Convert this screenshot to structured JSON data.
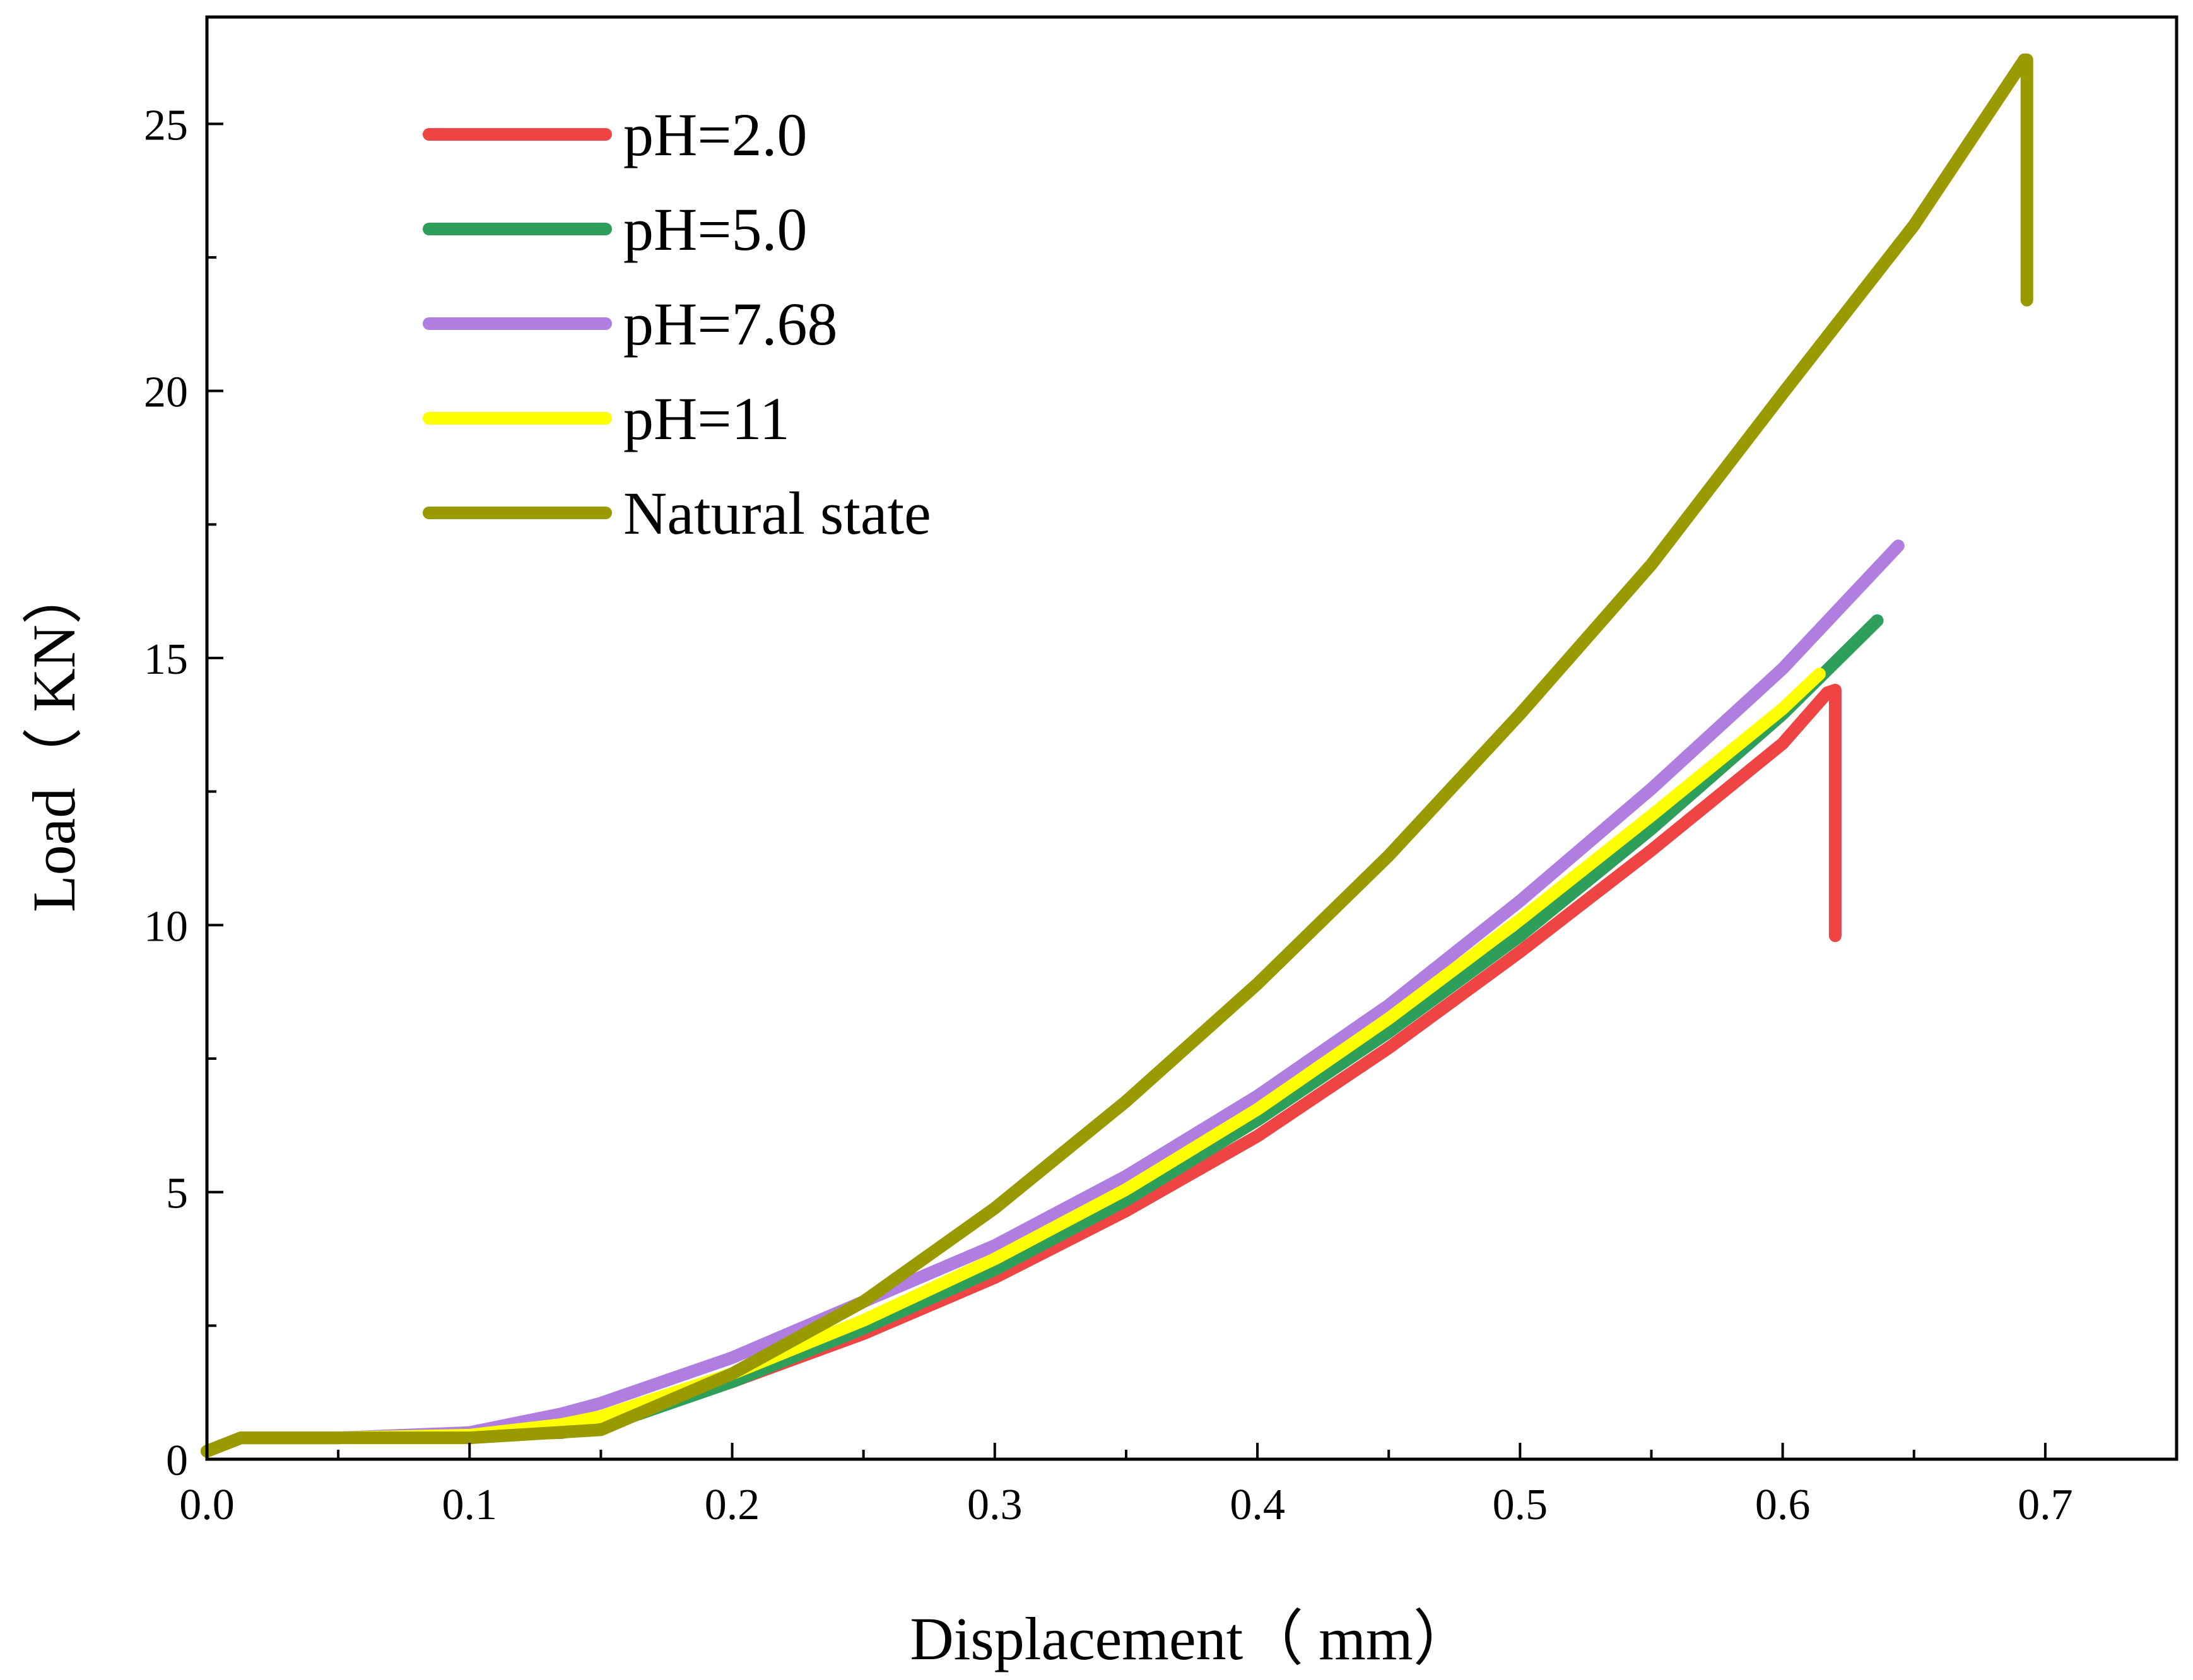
{
  "chart_data": {
    "type": "line",
    "title": "",
    "xlabel": "Displacement（ mm）",
    "ylabel": "Load（ KN）",
    "xlim": [
      0.0,
      0.75
    ],
    "ylim": [
      0,
      27.0
    ],
    "x_ticks": [
      {
        "value": 0.0,
        "label": "0.0"
      },
      {
        "value": 0.1,
        "label": "0.1"
      },
      {
        "value": 0.2,
        "label": "0.2"
      },
      {
        "value": 0.3,
        "label": "0.3"
      },
      {
        "value": 0.4,
        "label": "0.4"
      },
      {
        "value": 0.5,
        "label": "0.5"
      },
      {
        "value": 0.6,
        "label": "0.6"
      },
      {
        "value": 0.7,
        "label": "0.7"
      }
    ],
    "y_ticks": [
      {
        "value": 0,
        "label": "0"
      },
      {
        "value": 5,
        "label": "5"
      },
      {
        "value": 10,
        "label": "10"
      },
      {
        "value": 15,
        "label": "15"
      },
      {
        "value": 20,
        "label": "20"
      },
      {
        "value": 25,
        "label": "25"
      }
    ],
    "x_minor_step": 0.05,
    "y_minor_step": 2.5,
    "grid": false,
    "legend_position": "top-left",
    "series": [
      {
        "name": "pH=2.0",
        "color": "#ee4444",
        "x": [
          0.0,
          0.013,
          0.05,
          0.1,
          0.135,
          0.15,
          0.2,
          0.25,
          0.3,
          0.35,
          0.4,
          0.45,
          0.5,
          0.55,
          0.6,
          0.617,
          0.62,
          0.62
        ],
        "y": [
          0.15,
          0.4,
          0.4,
          0.45,
          0.5,
          0.62,
          1.45,
          2.35,
          3.4,
          4.65,
          6.05,
          7.7,
          9.5,
          11.4,
          13.4,
          14.35,
          14.4,
          9.8
        ]
      },
      {
        "name": "pH=5.0",
        "color": "#2e9e5b",
        "x": [
          0.0,
          0.013,
          0.05,
          0.1,
          0.135,
          0.15,
          0.2,
          0.25,
          0.3,
          0.35,
          0.4,
          0.45,
          0.5,
          0.55,
          0.6,
          0.636
        ],
        "y": [
          0.15,
          0.4,
          0.4,
          0.45,
          0.5,
          0.6,
          1.45,
          2.45,
          3.55,
          4.85,
          6.35,
          8.0,
          9.8,
          11.8,
          13.95,
          15.7
        ]
      },
      {
        "name": "pH=7.68",
        "color": "#b07ee0",
        "x": [
          0.0,
          0.013,
          0.05,
          0.1,
          0.135,
          0.15,
          0.2,
          0.25,
          0.3,
          0.35,
          0.4,
          0.45,
          0.5,
          0.55,
          0.6,
          0.644
        ],
        "y": [
          0.15,
          0.4,
          0.4,
          0.5,
          0.85,
          1.05,
          1.9,
          2.95,
          4.0,
          5.3,
          6.8,
          8.5,
          10.45,
          12.55,
          14.8,
          17.1
        ]
      },
      {
        "name": "pH=11",
        "color": "#ffff00",
        "x": [
          0.0,
          0.013,
          0.05,
          0.1,
          0.135,
          0.15,
          0.2,
          0.25,
          0.3,
          0.35,
          0.4,
          0.45,
          0.5,
          0.55,
          0.6,
          0.614
        ],
        "y": [
          0.15,
          0.4,
          0.4,
          0.45,
          0.65,
          0.8,
          1.6,
          2.6,
          3.75,
          5.05,
          6.55,
          8.25,
          10.1,
          12.05,
          14.05,
          14.7
        ]
      },
      {
        "name": "Natural state",
        "color": "#999900",
        "x": [
          0.0,
          0.013,
          0.05,
          0.1,
          0.15,
          0.2,
          0.25,
          0.3,
          0.35,
          0.4,
          0.45,
          0.5,
          0.55,
          0.6,
          0.65,
          0.692,
          0.693,
          0.693
        ],
        "y": [
          0.15,
          0.4,
          0.4,
          0.4,
          0.55,
          1.6,
          2.95,
          4.7,
          6.7,
          8.9,
          11.3,
          13.95,
          16.75,
          19.95,
          23.1,
          26.2,
          26.2,
          21.7
        ]
      }
    ]
  }
}
